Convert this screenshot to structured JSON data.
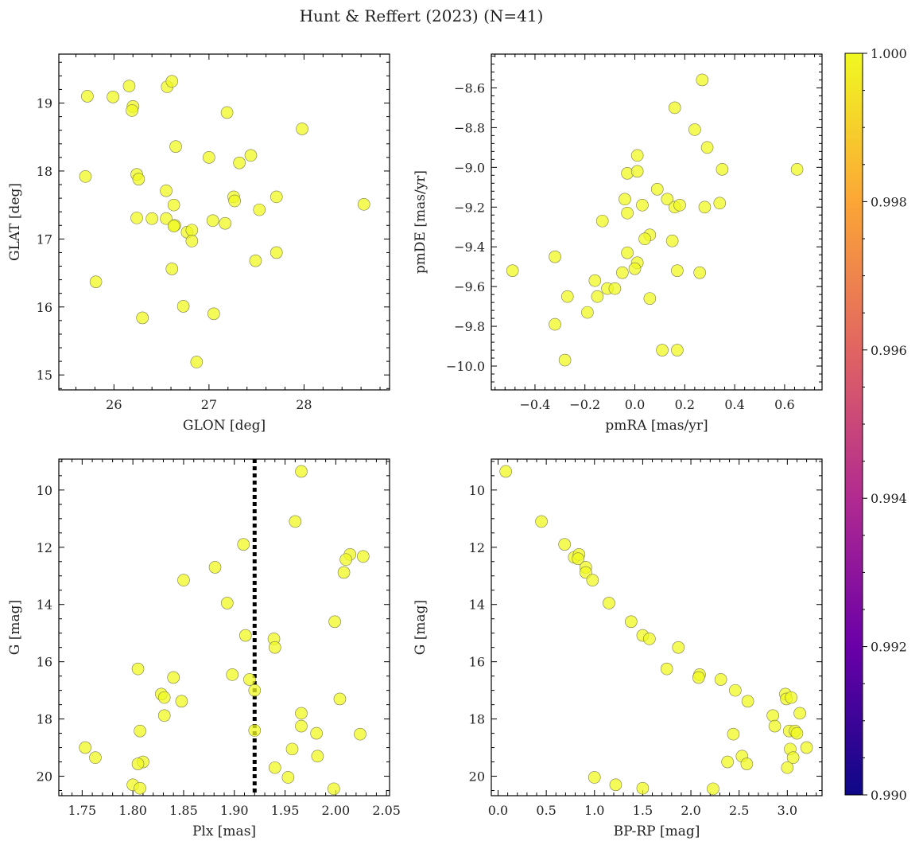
{
  "figure": {
    "title": "Hunt & Reffert (2023) (N=41)"
  },
  "colors": {
    "point": "#f0f921",
    "vline": "#000000"
  },
  "colorbar": {
    "ticks": [
      "1.000",
      "0.998",
      "0.996",
      "0.994",
      "0.992",
      "0.990"
    ],
    "range": [
      0.99,
      1.0
    ],
    "colors": [
      "#0d0887",
      "#6a00a8",
      "#b12a90",
      "#e16462",
      "#fca636",
      "#f0f921"
    ]
  },
  "chart_data": [
    {
      "id": "glon-glat",
      "type": "scatter",
      "xlabel": "GLON [deg]",
      "ylabel": "GLAT [deg]",
      "xlim": [
        25.42,
        28.9
      ],
      "ylim": [
        14.78,
        19.72
      ],
      "xticks": [
        26,
        27,
        28
      ],
      "yticks": [
        15,
        16,
        17,
        18,
        19
      ],
      "xticklabels": [
        "26",
        "27",
        "28"
      ],
      "yticklabels": [
        "15",
        "16",
        "17",
        "18",
        "19"
      ],
      "points": [
        [
          25.72,
          19.1
        ],
        [
          25.99,
          19.09
        ],
        [
          26.16,
          19.25
        ],
        [
          26.2,
          18.95
        ],
        [
          26.19,
          18.89
        ],
        [
          26.56,
          19.24
        ],
        [
          26.61,
          19.32
        ],
        [
          27.19,
          18.86
        ],
        [
          27.98,
          18.62
        ],
        [
          25.7,
          17.92
        ],
        [
          26.24,
          17.95
        ],
        [
          26.26,
          17.88
        ],
        [
          26.65,
          18.36
        ],
        [
          27.0,
          18.2
        ],
        [
          27.32,
          18.12
        ],
        [
          27.44,
          18.23
        ],
        [
          26.55,
          17.71
        ],
        [
          26.63,
          17.5
        ],
        [
          27.26,
          17.62
        ],
        [
          27.27,
          17.56
        ],
        [
          27.53,
          17.43
        ],
        [
          27.71,
          17.62
        ],
        [
          28.63,
          17.51
        ],
        [
          26.24,
          17.31
        ],
        [
          26.4,
          17.3
        ],
        [
          26.55,
          17.3
        ],
        [
          26.64,
          17.2
        ],
        [
          26.63,
          17.19
        ],
        [
          26.77,
          17.1
        ],
        [
          26.82,
          17.13
        ],
        [
          26.82,
          16.97
        ],
        [
          27.04,
          17.27
        ],
        [
          27.17,
          17.23
        ],
        [
          27.71,
          16.8
        ],
        [
          27.49,
          16.68
        ],
        [
          25.81,
          16.37
        ],
        [
          26.61,
          16.56
        ],
        [
          26.73,
          16.01
        ],
        [
          26.3,
          15.84
        ],
        [
          27.05,
          15.9
        ],
        [
          26.87,
          15.19
        ]
      ]
    },
    {
      "id": "pmra-pmde",
      "type": "scatter",
      "xlabel": "pmRA [mas/yr]",
      "ylabel": "pmDE [mas/yr]",
      "xlim": [
        -0.575,
        0.75
      ],
      "ylim": [
        -10.12,
        -8.43
      ],
      "xticks": [
        -0.4,
        -0.2,
        0.0,
        0.2,
        0.4,
        0.6
      ],
      "yticks": [
        -10.0,
        -9.8,
        -9.6,
        -9.4,
        -9.2,
        -9.0,
        -8.8,
        -8.6
      ],
      "xticklabels": [
        "−0.4",
        "−0.2",
        "0.0",
        "0.2",
        "0.4",
        "0.6"
      ],
      "yticklabels": [
        "−10.0",
        "−9.8",
        "−9.6",
        "−9.4",
        "−9.2",
        "−9.0",
        "−8.8",
        "−8.6"
      ],
      "points": [
        [
          0.27,
          -8.56
        ],
        [
          0.16,
          -8.7
        ],
        [
          0.24,
          -8.81
        ],
        [
          0.29,
          -8.9
        ],
        [
          0.01,
          -8.94
        ],
        [
          0.35,
          -9.01
        ],
        [
          0.65,
          -9.01
        ],
        [
          -0.03,
          -9.03
        ],
        [
          0.01,
          -9.02
        ],
        [
          0.09,
          -9.11
        ],
        [
          -0.04,
          -9.16
        ],
        [
          0.13,
          -9.16
        ],
        [
          0.03,
          -9.19
        ],
        [
          0.16,
          -9.2
        ],
        [
          0.18,
          -9.19
        ],
        [
          0.28,
          -9.2
        ],
        [
          0.34,
          -9.18
        ],
        [
          -0.03,
          -9.23
        ],
        [
          -0.13,
          -9.27
        ],
        [
          0.06,
          -9.34
        ],
        [
          0.04,
          -9.36
        ],
        [
          0.15,
          -9.37
        ],
        [
          -0.03,
          -9.43
        ],
        [
          0.01,
          -9.48
        ],
        [
          0.0,
          -9.51
        ],
        [
          -0.05,
          -9.53
        ],
        [
          0.17,
          -9.52
        ],
        [
          0.26,
          -9.53
        ],
        [
          -0.49,
          -9.52
        ],
        [
          -0.32,
          -9.45
        ],
        [
          -0.16,
          -9.57
        ],
        [
          -0.11,
          -9.61
        ],
        [
          -0.08,
          -9.61
        ],
        [
          -0.15,
          -9.65
        ],
        [
          -0.27,
          -9.65
        ],
        [
          0.06,
          -9.66
        ],
        [
          -0.19,
          -9.73
        ],
        [
          -0.32,
          -9.79
        ],
        [
          0.11,
          -9.92
        ],
        [
          0.17,
          -9.92
        ],
        [
          -0.28,
          -9.97
        ]
      ]
    },
    {
      "id": "plx-g",
      "type": "scatter",
      "xlabel": "Plx [mas]",
      "ylabel": "G [mag]",
      "xlim": [
        1.727,
        2.053
      ],
      "ylim": [
        8.92,
        20.68
      ],
      "y_inverted": true,
      "xticks": [
        1.75,
        1.8,
        1.85,
        1.9,
        1.95,
        2.0,
        2.05
      ],
      "yticks": [
        10,
        12,
        14,
        16,
        18,
        20
      ],
      "xticklabels": [
        "1.75",
        "1.80",
        "1.85",
        "1.90",
        "1.95",
        "2.00",
        "2.05"
      ],
      "yticklabels": [
        "10",
        "12",
        "14",
        "16",
        "18",
        "20"
      ],
      "vline": 1.92,
      "points": [
        [
          1.966,
          9.35
        ],
        [
          1.96,
          11.1
        ],
        [
          1.909,
          11.9
        ],
        [
          2.014,
          12.25
        ],
        [
          2.027,
          12.32
        ],
        [
          2.01,
          12.43
        ],
        [
          1.881,
          12.7
        ],
        [
          2.008,
          12.88
        ],
        [
          1.85,
          13.15
        ],
        [
          1.893,
          13.95
        ],
        [
          1.999,
          14.6
        ],
        [
          1.939,
          15.2
        ],
        [
          1.911,
          15.08
        ],
        [
          1.94,
          15.5
        ],
        [
          1.805,
          16.25
        ],
        [
          1.898,
          16.45
        ],
        [
          1.84,
          16.55
        ],
        [
          1.915,
          16.62
        ],
        [
          1.92,
          17.0
        ],
        [
          1.828,
          17.13
        ],
        [
          1.831,
          17.25
        ],
        [
          2.004,
          17.3
        ],
        [
          1.848,
          17.38
        ],
        [
          1.966,
          17.8
        ],
        [
          1.831,
          17.88
        ],
        [
          1.966,
          18.25
        ],
        [
          1.92,
          18.4
        ],
        [
          1.807,
          18.42
        ],
        [
          1.981,
          18.5
        ],
        [
          2.024,
          18.53
        ],
        [
          1.753,
          19.0
        ],
        [
          1.957,
          19.05
        ],
        [
          1.763,
          19.35
        ],
        [
          1.982,
          19.3
        ],
        [
          1.81,
          19.5
        ],
        [
          1.805,
          19.57
        ],
        [
          1.94,
          19.7
        ],
        [
          1.953,
          20.04
        ],
        [
          1.8,
          20.3
        ],
        [
          1.807,
          20.42
        ],
        [
          1.998,
          20.44
        ]
      ]
    },
    {
      "id": "bprp-g",
      "type": "scatter",
      "xlabel": "BP-RP [mag]",
      "ylabel": "G [mag]",
      "xlim": [
        -0.07,
        3.36
      ],
      "ylim": [
        8.92,
        20.68
      ],
      "y_inverted": true,
      "xticks": [
        0.0,
        0.5,
        1.0,
        1.5,
        2.0,
        2.5,
        3.0
      ],
      "yticks": [
        10,
        12,
        14,
        16,
        18,
        20
      ],
      "xticklabels": [
        "0.0",
        "0.5",
        "1.0",
        "1.5",
        "2.0",
        "2.5",
        "3.0"
      ],
      "yticklabels": [
        "10",
        "12",
        "14",
        "16",
        "18",
        "20"
      ],
      "points": [
        [
          0.08,
          9.35
        ],
        [
          0.45,
          11.1
        ],
        [
          0.69,
          11.9
        ],
        [
          0.79,
          12.35
        ],
        [
          0.84,
          12.25
        ],
        [
          0.83,
          12.4
        ],
        [
          0.91,
          12.7
        ],
        [
          0.91,
          12.88
        ],
        [
          0.98,
          13.15
        ],
        [
          1.15,
          13.95
        ],
        [
          1.38,
          14.6
        ],
        [
          1.5,
          15.08
        ],
        [
          1.57,
          15.2
        ],
        [
          1.87,
          15.5
        ],
        [
          1.75,
          16.25
        ],
        [
          2.09,
          16.45
        ],
        [
          2.08,
          16.55
        ],
        [
          2.31,
          16.62
        ],
        [
          2.46,
          17.0
        ],
        [
          2.98,
          17.13
        ],
        [
          2.99,
          17.3
        ],
        [
          3.04,
          17.25
        ],
        [
          2.59,
          17.38
        ],
        [
          3.13,
          17.8
        ],
        [
          2.85,
          17.88
        ],
        [
          2.87,
          18.25
        ],
        [
          3.02,
          18.42
        ],
        [
          3.08,
          18.42
        ],
        [
          3.1,
          18.5
        ],
        [
          2.44,
          18.53
        ],
        [
          3.2,
          19.0
        ],
        [
          3.03,
          19.05
        ],
        [
          3.06,
          19.35
        ],
        [
          2.53,
          19.3
        ],
        [
          2.38,
          19.5
        ],
        [
          2.58,
          19.57
        ],
        [
          3.0,
          19.7
        ],
        [
          1.0,
          20.04
        ],
        [
          1.22,
          20.3
        ],
        [
          1.5,
          20.42
        ],
        [
          2.23,
          20.44
        ]
      ]
    }
  ]
}
